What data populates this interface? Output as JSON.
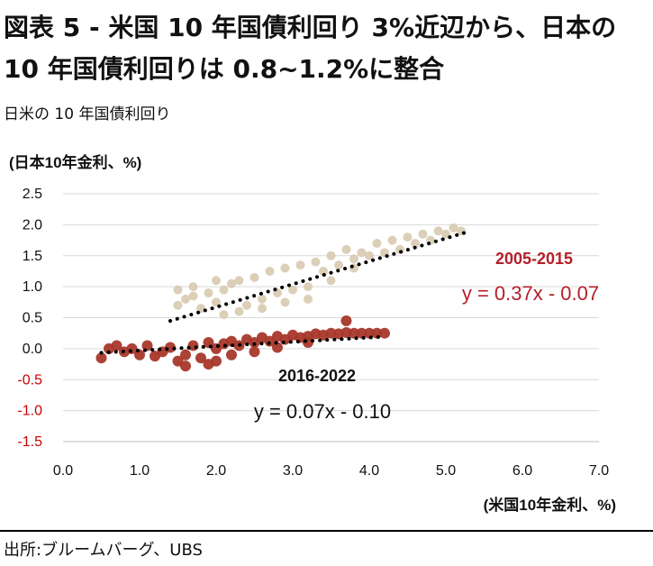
{
  "title_line1": "図表 5 - 米国 10 年国債利回り 3%近辺から、日本の",
  "title_line2": "10 年国債利回りは 0.8~1.2%に整合",
  "subtitle": "日米の 10 年国債利回り",
  "source": "出所:ブルームバーグ、UBS",
  "colors": {
    "series_2005_2015": "#d9ccb4",
    "series_2016_2022": "#a8372a",
    "negative_tick": "#cc0000",
    "label_2005_2015": "#b3202a",
    "gridline": "#d9d9d9"
  },
  "chart_data": {
    "type": "scatter",
    "xlabel": "(米国10年金利、%)",
    "ylabel": "(日本10年金利、%)",
    "xlim": [
      0,
      7
    ],
    "ylim": [
      -1.5,
      2.5
    ],
    "x_ticks": [
      "0.0",
      "1.0",
      "2.0",
      "3.0",
      "4.0",
      "5.0",
      "6.0",
      "7.0"
    ],
    "y_ticks": [
      "2.5",
      "2.0",
      "1.5",
      "1.0",
      "0.5",
      "0.0",
      "-0.5",
      "-1.0",
      "-1.5"
    ],
    "grid": "horizontal",
    "series": [
      {
        "name": "2005-2015",
        "equation": "y = 0.37x - 0.07",
        "x_range": [
          1.4,
          5.2
        ],
        "trendline": [
          [
            1.4,
            0.448
          ],
          [
            5.3,
            1.891
          ]
        ],
        "cloud_points": [
          [
            1.5,
            0.7
          ],
          [
            1.6,
            0.8
          ],
          [
            1.7,
            0.85
          ],
          [
            1.8,
            0.65
          ],
          [
            1.9,
            0.9
          ],
          [
            2.0,
            0.75
          ],
          [
            2.1,
            0.95
          ],
          [
            2.2,
            1.05
          ],
          [
            2.1,
            0.55
          ],
          [
            2.3,
            1.1
          ],
          [
            2.4,
            0.7
          ],
          [
            2.5,
            1.15
          ],
          [
            2.6,
            0.8
          ],
          [
            2.7,
            1.25
          ],
          [
            2.8,
            0.9
          ],
          [
            2.9,
            1.3
          ],
          [
            3.0,
            0.95
          ],
          [
            3.1,
            1.35
          ],
          [
            3.2,
            1.0
          ],
          [
            3.3,
            1.4
          ],
          [
            3.4,
            1.25
          ],
          [
            3.5,
            1.5
          ],
          [
            3.6,
            1.35
          ],
          [
            3.7,
            1.6
          ],
          [
            3.8,
            1.45
          ],
          [
            3.9,
            1.55
          ],
          [
            4.0,
            1.5
          ],
          [
            4.1,
            1.7
          ],
          [
            4.2,
            1.55
          ],
          [
            4.3,
            1.75
          ],
          [
            4.4,
            1.6
          ],
          [
            4.5,
            1.8
          ],
          [
            4.6,
            1.7
          ],
          [
            4.7,
            1.85
          ],
          [
            4.8,
            1.75
          ],
          [
            4.9,
            1.9
          ],
          [
            5.0,
            1.85
          ],
          [
            5.1,
            1.95
          ],
          [
            5.2,
            1.9
          ],
          [
            1.5,
            0.95
          ],
          [
            1.7,
            1.0
          ],
          [
            2.0,
            1.1
          ],
          [
            2.3,
            0.6
          ],
          [
            2.6,
            0.65
          ],
          [
            2.9,
            0.75
          ],
          [
            3.2,
            0.8
          ],
          [
            3.5,
            1.1
          ],
          [
            3.8,
            1.3
          ]
        ]
      },
      {
        "name": "2016-2022",
        "equation": "y = 0.07x - 0.10",
        "x_range": [
          0.5,
          4.2
        ],
        "trendline": [
          [
            0.5,
            -0.065
          ],
          [
            4.2,
            0.194
          ]
        ],
        "cloud_points": [
          [
            0.5,
            -0.15
          ],
          [
            0.6,
            0.0
          ],
          [
            0.7,
            0.05
          ],
          [
            0.8,
            -0.05
          ],
          [
            0.9,
            0.0
          ],
          [
            1.0,
            -0.1
          ],
          [
            1.1,
            0.05
          ],
          [
            1.2,
            -0.12
          ],
          [
            1.3,
            -0.05
          ],
          [
            1.4,
            0.02
          ],
          [
            1.5,
            -0.2
          ],
          [
            1.6,
            -0.1
          ],
          [
            1.7,
            0.05
          ],
          [
            1.8,
            -0.15
          ],
          [
            1.9,
            0.1
          ],
          [
            2.0,
            0.0
          ],
          [
            2.1,
            0.08
          ],
          [
            2.2,
            0.12
          ],
          [
            2.3,
            0.05
          ],
          [
            2.4,
            0.15
          ],
          [
            2.5,
            0.1
          ],
          [
            2.6,
            0.18
          ],
          [
            2.7,
            0.12
          ],
          [
            2.8,
            0.2
          ],
          [
            2.9,
            0.15
          ],
          [
            3.0,
            0.22
          ],
          [
            3.1,
            0.18
          ],
          [
            3.2,
            0.2
          ],
          [
            3.3,
            0.24
          ],
          [
            3.4,
            0.22
          ],
          [
            3.5,
            0.25
          ],
          [
            3.6,
            0.24
          ],
          [
            3.7,
            0.26
          ],
          [
            3.8,
            0.25
          ],
          [
            3.9,
            0.25
          ],
          [
            4.0,
            0.25
          ],
          [
            4.1,
            0.25
          ],
          [
            4.2,
            0.25
          ],
          [
            3.7,
            0.45
          ],
          [
            1.9,
            -0.25
          ],
          [
            2.2,
            -0.1
          ],
          [
            2.5,
            -0.05
          ],
          [
            1.6,
            -0.28
          ],
          [
            2.0,
            -0.2
          ],
          [
            2.8,
            0.02
          ],
          [
            3.2,
            0.1
          ]
        ]
      }
    ]
  }
}
